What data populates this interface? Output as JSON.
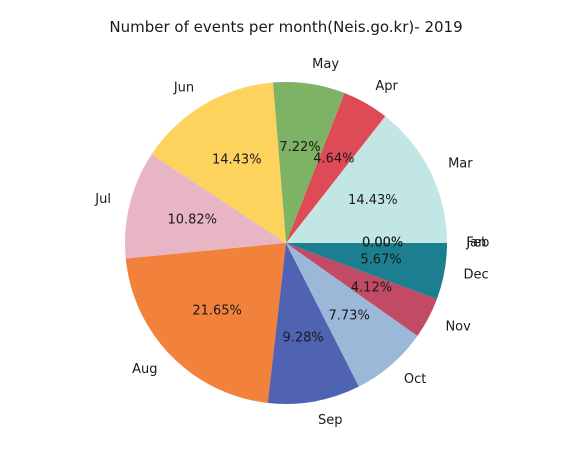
{
  "chart_data": {
    "type": "pie",
    "title": "Number of events per month(Neis.go.kr)- 2019",
    "start_angle_deg": 0,
    "direction": "counterclockwise",
    "categories": [
      "Jan",
      "Feb",
      "Mar",
      "Apr",
      "May",
      "Jun",
      "Jul",
      "Aug",
      "Sep",
      "Oct",
      "Nov",
      "Dec"
    ],
    "values": [
      0.0,
      0.0,
      14.43,
      4.64,
      7.22,
      14.43,
      10.82,
      21.65,
      9.28,
      7.73,
      4.12,
      5.67
    ],
    "value_labels": [
      "0.00%",
      "0.00%",
      "14.43%",
      "4.64%",
      "7.22%",
      "14.43%",
      "10.82%",
      "21.65%",
      "9.28%",
      "7.73%",
      "4.12%",
      "5.67%"
    ],
    "colors": [
      "#1b7f8f",
      "#1b7f8f",
      "#c1e6e4",
      "#de4a55",
      "#7eb365",
      "#fdd35d",
      "#e7b5c4",
      "#f2813c",
      "#5062b2",
      "#9cb8d8",
      "#c24a65",
      "#1b7f8f"
    ]
  }
}
